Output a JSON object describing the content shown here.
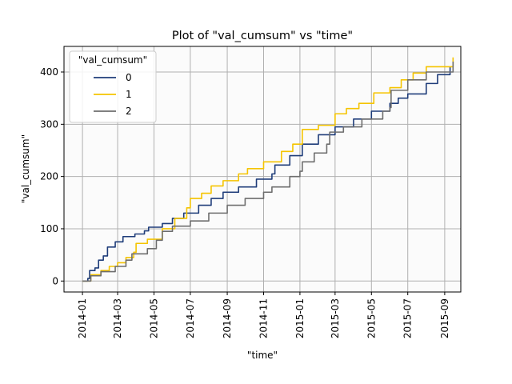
{
  "chart_data": {
    "type": "line",
    "title": "Plot of \"val_cumsum\" vs \"time\"",
    "xlabel": "\"time\"",
    "ylabel": "\"val_cumsum\"",
    "xlim": [
      "2013-12-01",
      "2015-09-28"
    ],
    "ylim": [
      -21,
      449
    ],
    "x_ticks": [
      "2014-01",
      "2014-03",
      "2014-05",
      "2014-07",
      "2014-09",
      "2014-11",
      "2015-01",
      "2015-03",
      "2015-05",
      "2015-07",
      "2015-09"
    ],
    "y_ticks": [
      0,
      100,
      200,
      300,
      400
    ],
    "grid": true,
    "legend": {
      "title": "\"val_cumsum\"",
      "placement": "top-left"
    },
    "series": [
      {
        "name": "0",
        "color": "#1f3d7a",
        "points": [
          [
            "2014-01-01",
            0
          ],
          [
            "2014-01-10",
            5
          ],
          [
            "2014-01-13",
            20
          ],
          [
            "2014-01-22",
            25
          ],
          [
            "2014-01-28",
            40
          ],
          [
            "2014-02-05",
            48
          ],
          [
            "2014-02-12",
            65
          ],
          [
            "2014-02-25",
            75
          ],
          [
            "2014-03-10",
            85
          ],
          [
            "2014-03-30",
            90
          ],
          [
            "2014-04-15",
            96
          ],
          [
            "2014-04-22",
            103
          ],
          [
            "2014-05-15",
            110
          ],
          [
            "2014-06-01",
            120
          ],
          [
            "2014-06-20",
            130
          ],
          [
            "2014-07-15",
            145
          ],
          [
            "2014-08-05",
            158
          ],
          [
            "2014-08-25",
            170
          ],
          [
            "2014-09-20",
            180
          ],
          [
            "2014-10-20",
            195
          ],
          [
            "2014-11-15",
            205
          ],
          [
            "2014-11-20",
            222
          ],
          [
            "2014-12-15",
            240
          ],
          [
            "2015-01-05",
            262
          ],
          [
            "2015-02-01",
            280
          ],
          [
            "2015-03-01",
            295
          ],
          [
            "2015-04-01",
            310
          ],
          [
            "2015-05-01",
            325
          ],
          [
            "2015-06-01",
            340
          ],
          [
            "2015-06-15",
            350
          ],
          [
            "2015-07-01",
            358
          ],
          [
            "2015-08-01",
            378
          ],
          [
            "2015-08-20",
            395
          ],
          [
            "2015-09-10",
            410
          ]
        ]
      },
      {
        "name": "1",
        "color": "#f5c400",
        "points": [
          [
            "2014-01-01",
            0
          ],
          [
            "2014-01-15",
            12
          ],
          [
            "2014-02-01",
            20
          ],
          [
            "2014-02-15",
            28
          ],
          [
            "2014-03-01",
            35
          ],
          [
            "2014-03-15",
            45
          ],
          [
            "2014-03-28",
            55
          ],
          [
            "2014-04-01",
            72
          ],
          [
            "2014-04-20",
            80
          ],
          [
            "2014-05-15",
            100
          ],
          [
            "2014-06-05",
            120
          ],
          [
            "2014-06-25",
            140
          ],
          [
            "2014-07-01",
            158
          ],
          [
            "2014-07-20",
            168
          ],
          [
            "2014-08-05",
            182
          ],
          [
            "2014-08-25",
            192
          ],
          [
            "2014-09-20",
            205
          ],
          [
            "2014-10-05",
            215
          ],
          [
            "2014-11-01",
            228
          ],
          [
            "2014-12-01",
            248
          ],
          [
            "2014-12-20",
            262
          ],
          [
            "2015-01-05",
            290
          ],
          [
            "2015-02-01",
            298
          ],
          [
            "2015-03-01",
            320
          ],
          [
            "2015-03-20",
            330
          ],
          [
            "2015-04-10",
            340
          ],
          [
            "2015-05-05",
            360
          ],
          [
            "2015-06-01",
            370
          ],
          [
            "2015-06-20",
            385
          ],
          [
            "2015-07-10",
            398
          ],
          [
            "2015-08-01",
            410
          ],
          [
            "2015-09-15",
            428
          ]
        ]
      },
      {
        "name": "2",
        "color": "#6e6e6e",
        "points": [
          [
            "2014-01-01",
            0
          ],
          [
            "2014-01-15",
            10
          ],
          [
            "2014-02-01",
            18
          ],
          [
            "2014-02-25",
            28
          ],
          [
            "2014-03-15",
            40
          ],
          [
            "2014-03-25",
            52
          ],
          [
            "2014-04-20",
            62
          ],
          [
            "2014-05-05",
            78
          ],
          [
            "2014-05-15",
            95
          ],
          [
            "2014-06-01",
            105
          ],
          [
            "2014-07-01",
            115
          ],
          [
            "2014-08-01",
            130
          ],
          [
            "2014-09-01",
            145
          ],
          [
            "2014-10-01",
            158
          ],
          [
            "2014-11-01",
            170
          ],
          [
            "2014-11-15",
            180
          ],
          [
            "2014-12-15",
            200
          ],
          [
            "2015-01-01",
            210
          ],
          [
            "2015-01-05",
            228
          ],
          [
            "2015-01-25",
            245
          ],
          [
            "2015-02-15",
            262
          ],
          [
            "2015-02-20",
            285
          ],
          [
            "2015-03-15",
            295
          ],
          [
            "2015-04-15",
            310
          ],
          [
            "2015-05-20",
            325
          ],
          [
            "2015-06-01",
            332
          ],
          [
            "2015-06-03",
            365
          ],
          [
            "2015-07-01",
            385
          ],
          [
            "2015-08-01",
            400
          ],
          [
            "2015-09-15",
            420
          ]
        ]
      }
    ]
  }
}
